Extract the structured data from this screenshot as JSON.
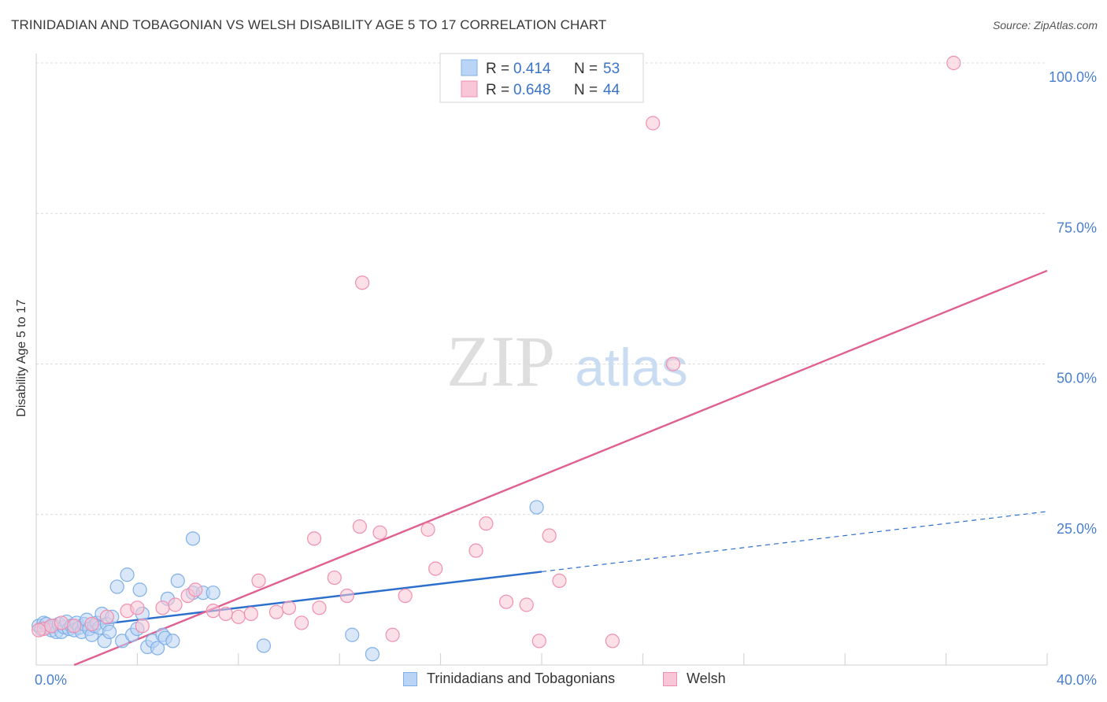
{
  "chart_data": {
    "type": "scatter",
    "title": "TRINIDADIAN AND TOBAGONIAN VS WELSH DISABILITY AGE 5 TO 17 CORRELATION CHART",
    "source": "Source: ZipAtlas.com",
    "ylabel": "Disability Age 5 to 17",
    "watermark": {
      "zip": "ZIP",
      "atlas": "atlas"
    },
    "xlim": [
      0,
      40
    ],
    "ylim": [
      0,
      100
    ],
    "x_ticks": [
      {
        "value": 0,
        "label": "0.0%"
      },
      {
        "value": 40,
        "label": "40.0%"
      }
    ],
    "y_ticks": [
      {
        "value": 25,
        "label": "25.0%"
      },
      {
        "value": 50,
        "label": "50.0%"
      },
      {
        "value": 75,
        "label": "75.0%"
      },
      {
        "value": 100,
        "label": "100.0%"
      }
    ],
    "grid": true,
    "legend_position": "top-center",
    "legend": [
      {
        "r_label": "R =",
        "r_value": "0.414",
        "n_label": "N =",
        "n_value": "53",
        "color": "#7fb0e8",
        "fill": "#b9d4f4"
      },
      {
        "r_label": "R =",
        "r_value": "0.648",
        "n_label": "N =",
        "n_value": "44",
        "color": "#f08fb0",
        "fill": "#f8c6d6"
      }
    ],
    "series": [
      {
        "name": "Trinidadians and Tobagonians",
        "color": "#7fb0e8",
        "fill": "#b9d4f4",
        "trend": {
          "x0": 0,
          "y0": 5.5,
          "x1": 20,
          "y1": 15.5,
          "dash_to_x": 40,
          "dash_to_y": 25.5,
          "color": "#2d6fcc"
        },
        "points": [
          [
            0.1,
            6.5
          ],
          [
            0.2,
            6
          ],
          [
            0.3,
            7
          ],
          [
            0.4,
            6.8
          ],
          [
            0.5,
            6.2
          ],
          [
            0.6,
            5.8
          ],
          [
            0.7,
            6.5
          ],
          [
            0.8,
            5.5
          ],
          [
            0.9,
            6.8
          ],
          [
            1.0,
            5.5
          ],
          [
            1.1,
            6.3
          ],
          [
            1.2,
            7.2
          ],
          [
            1.3,
            6
          ],
          [
            1.4,
            6.5
          ],
          [
            1.5,
            5.8
          ],
          [
            1.6,
            7
          ],
          [
            1.7,
            6.2
          ],
          [
            1.8,
            5.5
          ],
          [
            1.9,
            6.8
          ],
          [
            2.0,
            7.5
          ],
          [
            2.1,
            6
          ],
          [
            2.2,
            5
          ],
          [
            2.3,
            6.5
          ],
          [
            2.4,
            7
          ],
          [
            2.5,
            6.2
          ],
          [
            2.6,
            8.5
          ],
          [
            2.7,
            4
          ],
          [
            2.8,
            6.8
          ],
          [
            2.9,
            5.5
          ],
          [
            3.0,
            8
          ],
          [
            3.2,
            13
          ],
          [
            3.4,
            4
          ],
          [
            3.6,
            15
          ],
          [
            3.8,
            5
          ],
          [
            4.0,
            6
          ],
          [
            4.1,
            12.5
          ],
          [
            4.2,
            8.5
          ],
          [
            4.4,
            3
          ],
          [
            4.6,
            4
          ],
          [
            4.8,
            2.8
          ],
          [
            5.0,
            5
          ],
          [
            5.1,
            4.5
          ],
          [
            5.2,
            11
          ],
          [
            5.4,
            4
          ],
          [
            5.6,
            14
          ],
          [
            6.2,
            21
          ],
          [
            6.2,
            12
          ],
          [
            6.6,
            12
          ],
          [
            9.0,
            3.2
          ],
          [
            12.5,
            5
          ],
          [
            13.3,
            1.8
          ],
          [
            19.8,
            26.2
          ],
          [
            7.0,
            12.0
          ]
        ]
      },
      {
        "name": "Welsh",
        "color": "#f08fb0",
        "fill": "#f8c6d6",
        "trend": {
          "x0": 1.5,
          "y0": 0,
          "x1": 40,
          "y1": 65.5,
          "color": "#e06090"
        },
        "points": [
          [
            0.3,
            6
          ],
          [
            0.6,
            6.5
          ],
          [
            1.0,
            7
          ],
          [
            1.5,
            6.5
          ],
          [
            2.2,
            6.8
          ],
          [
            2.8,
            8
          ],
          [
            3.6,
            9
          ],
          [
            4.0,
            9.5
          ],
          [
            4.2,
            6.5
          ],
          [
            5.0,
            9.5
          ],
          [
            5.5,
            10
          ],
          [
            6.0,
            11.5
          ],
          [
            6.3,
            12.5
          ],
          [
            7.0,
            9
          ],
          [
            7.5,
            8.5
          ],
          [
            8.0,
            8
          ],
          [
            8.5,
            8.5
          ],
          [
            8.8,
            14
          ],
          [
            9.5,
            8.8
          ],
          [
            10.0,
            9.5
          ],
          [
            10.5,
            7
          ],
          [
            11.0,
            21
          ],
          [
            11.2,
            9.5
          ],
          [
            11.8,
            14.5
          ],
          [
            12.3,
            11.5
          ],
          [
            12.8,
            23
          ],
          [
            12.9,
            63.5
          ],
          [
            13.6,
            22
          ],
          [
            14.1,
            5
          ],
          [
            14.6,
            11.5
          ],
          [
            15.5,
            22.5
          ],
          [
            15.8,
            16
          ],
          [
            17.4,
            19
          ],
          [
            17.8,
            23.5
          ],
          [
            18.6,
            10.5
          ],
          [
            19.4,
            10
          ],
          [
            19.9,
            4
          ],
          [
            20.3,
            21.5
          ],
          [
            20.7,
            14
          ],
          [
            22.8,
            4
          ],
          [
            24.4,
            90
          ],
          [
            25.2,
            50
          ],
          [
            36.3,
            100
          ],
          [
            0.1,
            5.8
          ]
        ]
      }
    ]
  }
}
